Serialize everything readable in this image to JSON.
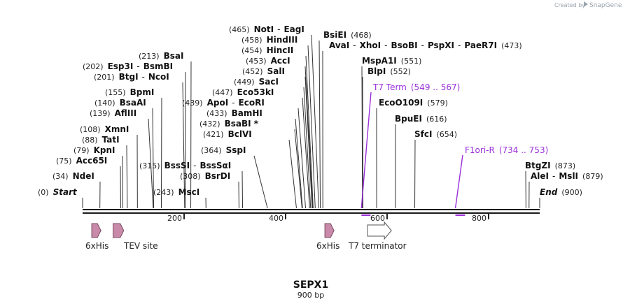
{
  "map": {
    "name": "SEPX1",
    "length_label": "900 bp",
    "bp_total": 900,
    "credit": "Created by",
    "brand": "SnapGene",
    "ruler_ticks": [
      "200",
      "400",
      "600",
      "800"
    ],
    "enzymes": [
      {
        "parts": [
          {
            "t": "(465)",
            "k": "pos"
          },
          {
            "t": "NotI",
            "k": "nm"
          },
          {
            "t": "-",
            "k": "sep"
          },
          {
            "t": "EagI",
            "k": "nm"
          }
        ],
        "site": 465
      },
      {
        "parts": [
          {
            "t": "(458)",
            "k": "pos"
          },
          {
            "t": "HindIII",
            "k": "nm"
          }
        ],
        "site": 458
      },
      {
        "parts": [
          {
            "t": "(454)",
            "k": "pos"
          },
          {
            "t": "HincII",
            "k": "nm"
          }
        ],
        "site": 454
      },
      {
        "parts": [
          {
            "t": "(453)",
            "k": "pos"
          },
          {
            "t": "AccI",
            "k": "nm"
          }
        ],
        "site": 453
      },
      {
        "parts": [
          {
            "t": "(452)",
            "k": "pos"
          },
          {
            "t": "SalI",
            "k": "nm"
          }
        ],
        "site": 452
      },
      {
        "parts": [
          {
            "t": "(449)",
            "k": "pos"
          },
          {
            "t": "SacI",
            "k": "nm"
          }
        ],
        "site": 449
      },
      {
        "parts": [
          {
            "t": "(447)",
            "k": "pos"
          },
          {
            "t": "Eco53kI",
            "k": "nm"
          }
        ],
        "site": 447
      },
      {
        "parts": [
          {
            "t": "(439)",
            "k": "pos"
          },
          {
            "t": "ApoI",
            "k": "nm"
          },
          {
            "t": "-",
            "k": "sep"
          },
          {
            "t": "EcoRI",
            "k": "nm"
          }
        ],
        "site": 439
      },
      {
        "parts": [
          {
            "t": "(433)",
            "k": "pos"
          },
          {
            "t": "BamHI",
            "k": "nm"
          }
        ],
        "site": 433
      },
      {
        "parts": [
          {
            "t": "(432)",
            "k": "pos"
          },
          {
            "t": "BsaBI *",
            "k": "nm"
          }
        ],
        "site": 432
      },
      {
        "parts": [
          {
            "t": "(421)",
            "k": "pos"
          },
          {
            "t": "BclVI",
            "k": "nm"
          }
        ],
        "site": 421
      },
      {
        "parts": [
          {
            "t": "(364)",
            "k": "pos"
          },
          {
            "t": "SspI",
            "k": "nm"
          }
        ],
        "site": 364
      },
      {
        "parts": [
          {
            "t": "(315)",
            "k": "pos"
          },
          {
            "t": "BssSI",
            "k": "nm"
          },
          {
            "t": "-",
            "k": "sep"
          },
          {
            "t": "BssSαI",
            "k": "nm"
          }
        ],
        "site": 315
      },
      {
        "parts": [
          {
            "t": "(308)",
            "k": "pos"
          },
          {
            "t": "BsrDI",
            "k": "nm"
          }
        ],
        "site": 308
      },
      {
        "parts": [
          {
            "t": "(243)",
            "k": "pos"
          },
          {
            "t": "MscI",
            "k": "nm"
          }
        ],
        "site": 243
      },
      {
        "parts": [
          {
            "t": "(213)",
            "k": "pos"
          },
          {
            "t": "BsaI",
            "k": "nm"
          }
        ],
        "site": 213
      },
      {
        "parts": [
          {
            "t": "(202)",
            "k": "pos"
          },
          {
            "t": "Esp3I",
            "k": "nm"
          },
          {
            "t": "-",
            "k": "sep"
          },
          {
            "t": "BsmBI",
            "k": "nm"
          }
        ],
        "site": 202
      },
      {
        "parts": [
          {
            "t": "(201)",
            "k": "pos"
          },
          {
            "t": "BtgI",
            "k": "nm"
          },
          {
            "t": "-",
            "k": "sep"
          },
          {
            "t": "NcoI",
            "k": "nm"
          }
        ],
        "site": 201
      },
      {
        "parts": [
          {
            "t": "(155)",
            "k": "pos"
          },
          {
            "t": "BpmI",
            "k": "nm"
          }
        ],
        "site": 155
      },
      {
        "parts": [
          {
            "t": "(140)",
            "k": "pos"
          },
          {
            "t": "BsaAI",
            "k": "nm"
          }
        ],
        "site": 140
      },
      {
        "parts": [
          {
            "t": "(139)",
            "k": "pos"
          },
          {
            "t": "AflIII",
            "k": "nm"
          }
        ],
        "site": 139
      },
      {
        "parts": [
          {
            "t": "(108)",
            "k": "pos"
          },
          {
            "t": "XmnI",
            "k": "nm"
          }
        ],
        "site": 108
      },
      {
        "parts": [
          {
            "t": "(88)",
            "k": "pos"
          },
          {
            "t": "TatI",
            "k": "nm"
          }
        ],
        "site": 88
      },
      {
        "parts": [
          {
            "t": "(79)",
            "k": "pos"
          },
          {
            "t": "KpnI",
            "k": "nm"
          }
        ],
        "site": 79
      },
      {
        "parts": [
          {
            "t": "(75)",
            "k": "pos"
          },
          {
            "t": "Acc65I",
            "k": "nm"
          }
        ],
        "site": 75
      },
      {
        "parts": [
          {
            "t": "(34)",
            "k": "pos"
          },
          {
            "t": "NdeI",
            "k": "nm"
          }
        ],
        "site": 34
      },
      {
        "parts": [
          {
            "t": "(0)",
            "k": "pos"
          },
          {
            "t": "Start",
            "k": "nm it"
          }
        ],
        "site": 0
      },
      {
        "parts": [
          {
            "t": "BsiEI",
            "k": "nm"
          },
          {
            "t": "(468)",
            "k": "pos"
          }
        ],
        "site": 468
      },
      {
        "parts": [
          {
            "t": "AvaI",
            "k": "nm"
          },
          {
            "t": "-",
            "k": "sep"
          },
          {
            "t": "XhoI",
            "k": "nm"
          },
          {
            "t": "-",
            "k": "sep"
          },
          {
            "t": "BsoBI",
            "k": "nm"
          },
          {
            "t": "-",
            "k": "sep"
          },
          {
            "t": "PspXI",
            "k": "nm"
          },
          {
            "t": "-",
            "k": "sep"
          },
          {
            "t": "PaeR7I",
            "k": "nm"
          },
          {
            "t": "(473)",
            "k": "pos"
          }
        ],
        "site": 473
      },
      {
        "parts": [
          {
            "t": "MspA1I",
            "k": "nm"
          },
          {
            "t": "(551)",
            "k": "pos"
          }
        ],
        "site": 551
      },
      {
        "parts": [
          {
            "t": "BlpI",
            "k": "nm"
          },
          {
            "t": "(552)",
            "k": "pos"
          }
        ],
        "site": 552
      },
      {
        "parts": [
          {
            "t": "EcoO109I",
            "k": "nm"
          },
          {
            "t": "(579)",
            "k": "pos"
          }
        ],
        "site": 579
      },
      {
        "parts": [
          {
            "t": "BpuEI",
            "k": "nm"
          },
          {
            "t": "(616)",
            "k": "pos"
          }
        ],
        "site": 616
      },
      {
        "parts": [
          {
            "t": "SfcI",
            "k": "nm"
          },
          {
            "t": "(654)",
            "k": "pos"
          }
        ],
        "site": 654
      },
      {
        "parts": [
          {
            "t": "BtgZI",
            "k": "nm"
          },
          {
            "t": "(873)",
            "k": "pos"
          }
        ],
        "site": 873
      },
      {
        "parts": [
          {
            "t": "AleI",
            "k": "nm"
          },
          {
            "t": "-",
            "k": "sep"
          },
          {
            "t": "MslI",
            "k": "nm"
          },
          {
            "t": "(879)",
            "k": "pos"
          }
        ],
        "site": 879
      },
      {
        "parts": [
          {
            "t": "End",
            "k": "nm it"
          },
          {
            "t": "(900)",
            "k": "pos"
          }
        ],
        "site": 900
      }
    ],
    "primers": [
      {
        "parts": [
          {
            "t": "T7 Term",
            "k": "primer"
          },
          {
            "t": "(549 .. 567)",
            "k": "primer"
          }
        ],
        "start": 549,
        "end": 567
      },
      {
        "parts": [
          {
            "t": "F1ori-R",
            "k": "primer"
          },
          {
            "t": "(734 .. 753)",
            "k": "primer"
          }
        ],
        "start": 734,
        "end": 753
      }
    ],
    "features": [
      {
        "label": "6xHis",
        "start": 18,
        "end": 36,
        "kind": "cds"
      },
      {
        "label": "TEV site",
        "start": 60,
        "end": 81,
        "kind": "cds"
      },
      {
        "label": "6xHis",
        "start": 477,
        "end": 495,
        "kind": "cds"
      },
      {
        "label": "T7 terminator",
        "start": 561,
        "end": 608,
        "kind": "terminator"
      }
    ]
  }
}
